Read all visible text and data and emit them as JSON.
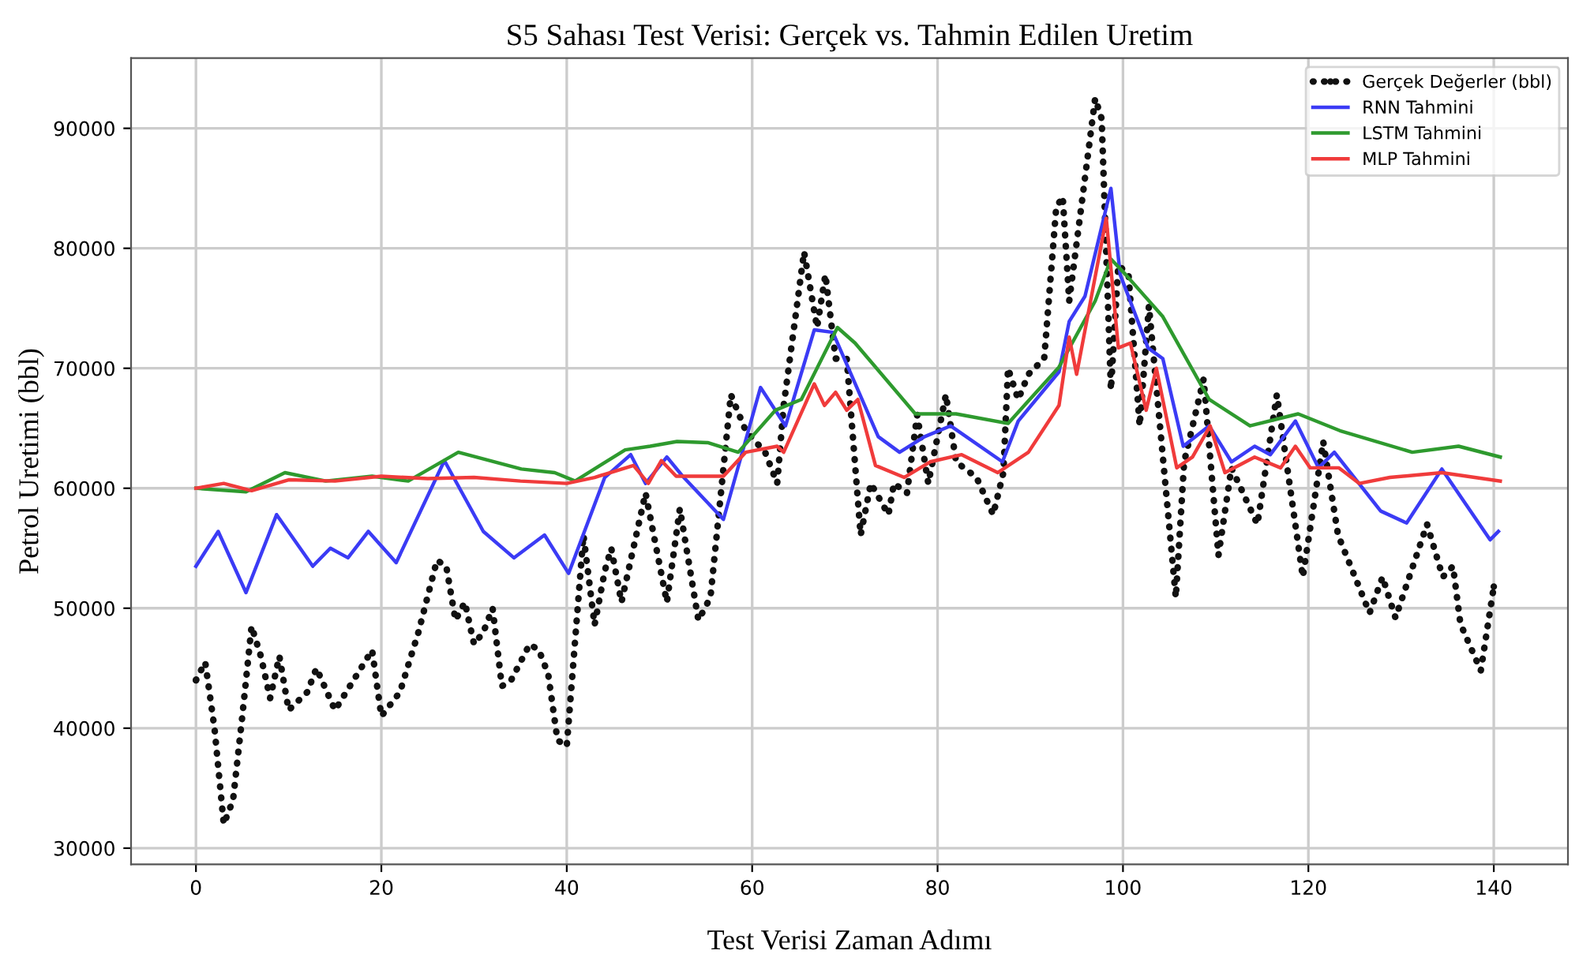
{
  "chart_data": {
    "type": "line",
    "title": "S5 Sahası Test Verisi: Gerçek vs. Tahmin Edilen Uretim",
    "xlabel": "Test Verisi Zaman Adımı",
    "ylabel": "Petrol Uretimi (bbl)",
    "xlim": [
      -7,
      148
    ],
    "ylim": [
      28650,
      95850
    ],
    "xticks": [
      0,
      20,
      40,
      60,
      80,
      100,
      120,
      140
    ],
    "yticks": [
      30000,
      40000,
      50000,
      60000,
      70000,
      80000,
      90000
    ],
    "grid": true,
    "legend": "top right",
    "series": [
      {
        "name": "Gerçek Değerler (bbl)",
        "color": "#111111",
        "line_style": "dotted",
        "x": [
          0,
          1,
          2,
          3,
          4,
          5,
          6,
          7,
          8,
          9,
          10,
          12,
          13,
          15,
          17,
          19,
          20,
          22,
          24,
          26,
          27,
          28,
          29,
          30,
          31,
          32,
          33,
          34,
          36,
          37,
          38,
          39,
          40,
          41.8,
          43,
          44.1,
          44.8,
          45.9,
          48.5,
          50.8,
          52.2,
          54.2,
          55.5,
          57.7,
          59.3,
          61.4,
          62.7,
          63.4,
          65.6,
          67,
          67.9,
          69,
          70.2,
          71.7,
          72.8,
          74.7,
          75.3,
          76.7,
          77.8,
          79,
          80.9,
          82,
          84.2,
          86,
          87.1,
          87.6,
          88.7,
          89.8,
          91.5,
          92.8,
          93.5,
          94.2,
          97,
          97.7,
          98.7,
          99.5,
          100.6,
          101.8,
          102.8,
          105.7,
          106.6,
          108.7,
          110.3,
          111.7,
          114.5,
          116.6,
          119.4,
          121.6,
          123.2,
          126.6,
          128,
          129.4,
          132.8,
          134.5,
          135.6,
          136.4,
          138.6,
          140
        ],
        "values": [
          44000,
          45500,
          40000,
          32000,
          34000,
          41000,
          48500,
          46000,
          42500,
          46000,
          41500,
          43000,
          45000,
          41500,
          44000,
          46500,
          41000,
          43000,
          48000,
          54000,
          53500,
          49000,
          50500,
          47000,
          48000,
          50000,
          43500,
          44000,
          47000,
          46500,
          44500,
          39000,
          38500,
          56100,
          48600,
          53100,
          55000,
          50500,
          59600,
          50500,
          58300,
          49000,
          50900,
          67800,
          64800,
          63000,
          60400,
          66900,
          79700,
          73400,
          77800,
          70800,
          70800,
          56100,
          60400,
          57800,
          60400,
          59600,
          66100,
          60400,
          67800,
          62200,
          60900,
          57800,
          61300,
          70000,
          67400,
          69500,
          70800,
          83400,
          84300,
          75600,
          92500,
          90800,
          68200,
          78600,
          77800,
          65200,
          75200,
          50900,
          62200,
          69100,
          54400,
          61700,
          57000,
          67800,
          52600,
          63900,
          56100,
          49600,
          52600,
          49200,
          57000,
          52600,
          53500,
          48700,
          44800,
          51800
        ]
      },
      {
        "name": "RNN Tahmini",
        "color": "#3b3bf5",
        "line_style": "solid",
        "x": [
          0,
          2.4,
          5.4,
          8.7,
          12.6,
          14.5,
          16.4,
          18.6,
          21.6,
          26.8,
          31,
          34.3,
          37.6,
          40.2,
          44.1,
          46.9,
          48.5,
          50.8,
          52.5,
          56.9,
          60.9,
          63.6,
          66.7,
          68.7,
          73.6,
          75.9,
          78.6,
          81.4,
          87,
          88.7,
          93.1,
          94.2,
          95.9,
          98.7,
          99.7,
          102.7,
          104.3,
          106.5,
          109.3,
          111.7,
          114.2,
          115.9,
          118.6,
          121.1,
          122.8,
          127.8,
          130.6,
          134.4,
          139.6,
          140.5
        ],
        "values": [
          53500,
          56400,
          51300,
          57800,
          53500,
          55000,
          54200,
          56400,
          53800,
          62300,
          56400,
          54200,
          56100,
          52900,
          60900,
          62800,
          60400,
          62600,
          61000,
          57400,
          68400,
          65200,
          73200,
          73000,
          64300,
          63000,
          64300,
          65200,
          62200,
          65600,
          69700,
          73900,
          76000,
          85000,
          77800,
          71700,
          70800,
          63500,
          65200,
          62200,
          63500,
          62800,
          65600,
          61700,
          63000,
          58100,
          57100,
          61600,
          55700,
          56400
        ]
      },
      {
        "name": "LSTM Tahmini",
        "color": "#2e9a2e",
        "line_style": "solid",
        "x": [
          0,
          5.4,
          9.6,
          14,
          19,
          22.9,
          28.3,
          35.1,
          38.7,
          40.9,
          46.3,
          49,
          51.9,
          55.2,
          58.5,
          62.5,
          65.3,
          69.2,
          71.1,
          77.6,
          82,
          87.6,
          93.1,
          97,
          98.7,
          100.3,
          104.3,
          109.3,
          113.7,
          118.9,
          123.4,
          131.2,
          136.2,
          140.7
        ],
        "values": [
          60000,
          59700,
          61300,
          60600,
          61000,
          60600,
          63000,
          61600,
          61300,
          60600,
          63200,
          63500,
          63900,
          63800,
          63000,
          66500,
          67400,
          73400,
          72100,
          66200,
          66200,
          65400,
          70100,
          75600,
          79100,
          77800,
          74300,
          67400,
          65200,
          66200,
          64800,
          63000,
          63500,
          62600
        ]
      },
      {
        "name": "MLP Tahmini",
        "color": "#f03b3b",
        "line_style": "solid",
        "x": [
          0,
          3,
          6,
          10,
          15,
          20,
          25,
          30,
          35,
          40,
          43,
          47.2,
          48.8,
          50.2,
          51.8,
          56.9,
          59.3,
          62.7,
          63.4,
          66.7,
          67.8,
          69,
          70.2,
          71.4,
          73.3,
          76.4,
          79.2,
          82.6,
          86.5,
          89.8,
          93.1,
          94.2,
          95,
          98.2,
          99.5,
          100.8,
          102.5,
          103.6,
          105.8,
          107.5,
          109.4,
          111,
          114.2,
          117,
          118.6,
          120.2,
          123.3,
          125.5,
          128.8,
          134.4,
          140.7
        ],
        "values": [
          60000,
          60400,
          59800,
          60700,
          60600,
          61000,
          60800,
          60900,
          60600,
          60400,
          60900,
          61900,
          60400,
          62300,
          61000,
          61000,
          63000,
          63500,
          63000,
          68700,
          66900,
          68000,
          66500,
          67400,
          61900,
          60900,
          62200,
          62800,
          61300,
          63000,
          66900,
          72600,
          69500,
          82500,
          71700,
          72100,
          66500,
          70000,
          61700,
          62600,
          65200,
          61300,
          62600,
          61700,
          63500,
          61700,
          61700,
          60400,
          60900,
          61300,
          60600
        ]
      }
    ]
  }
}
